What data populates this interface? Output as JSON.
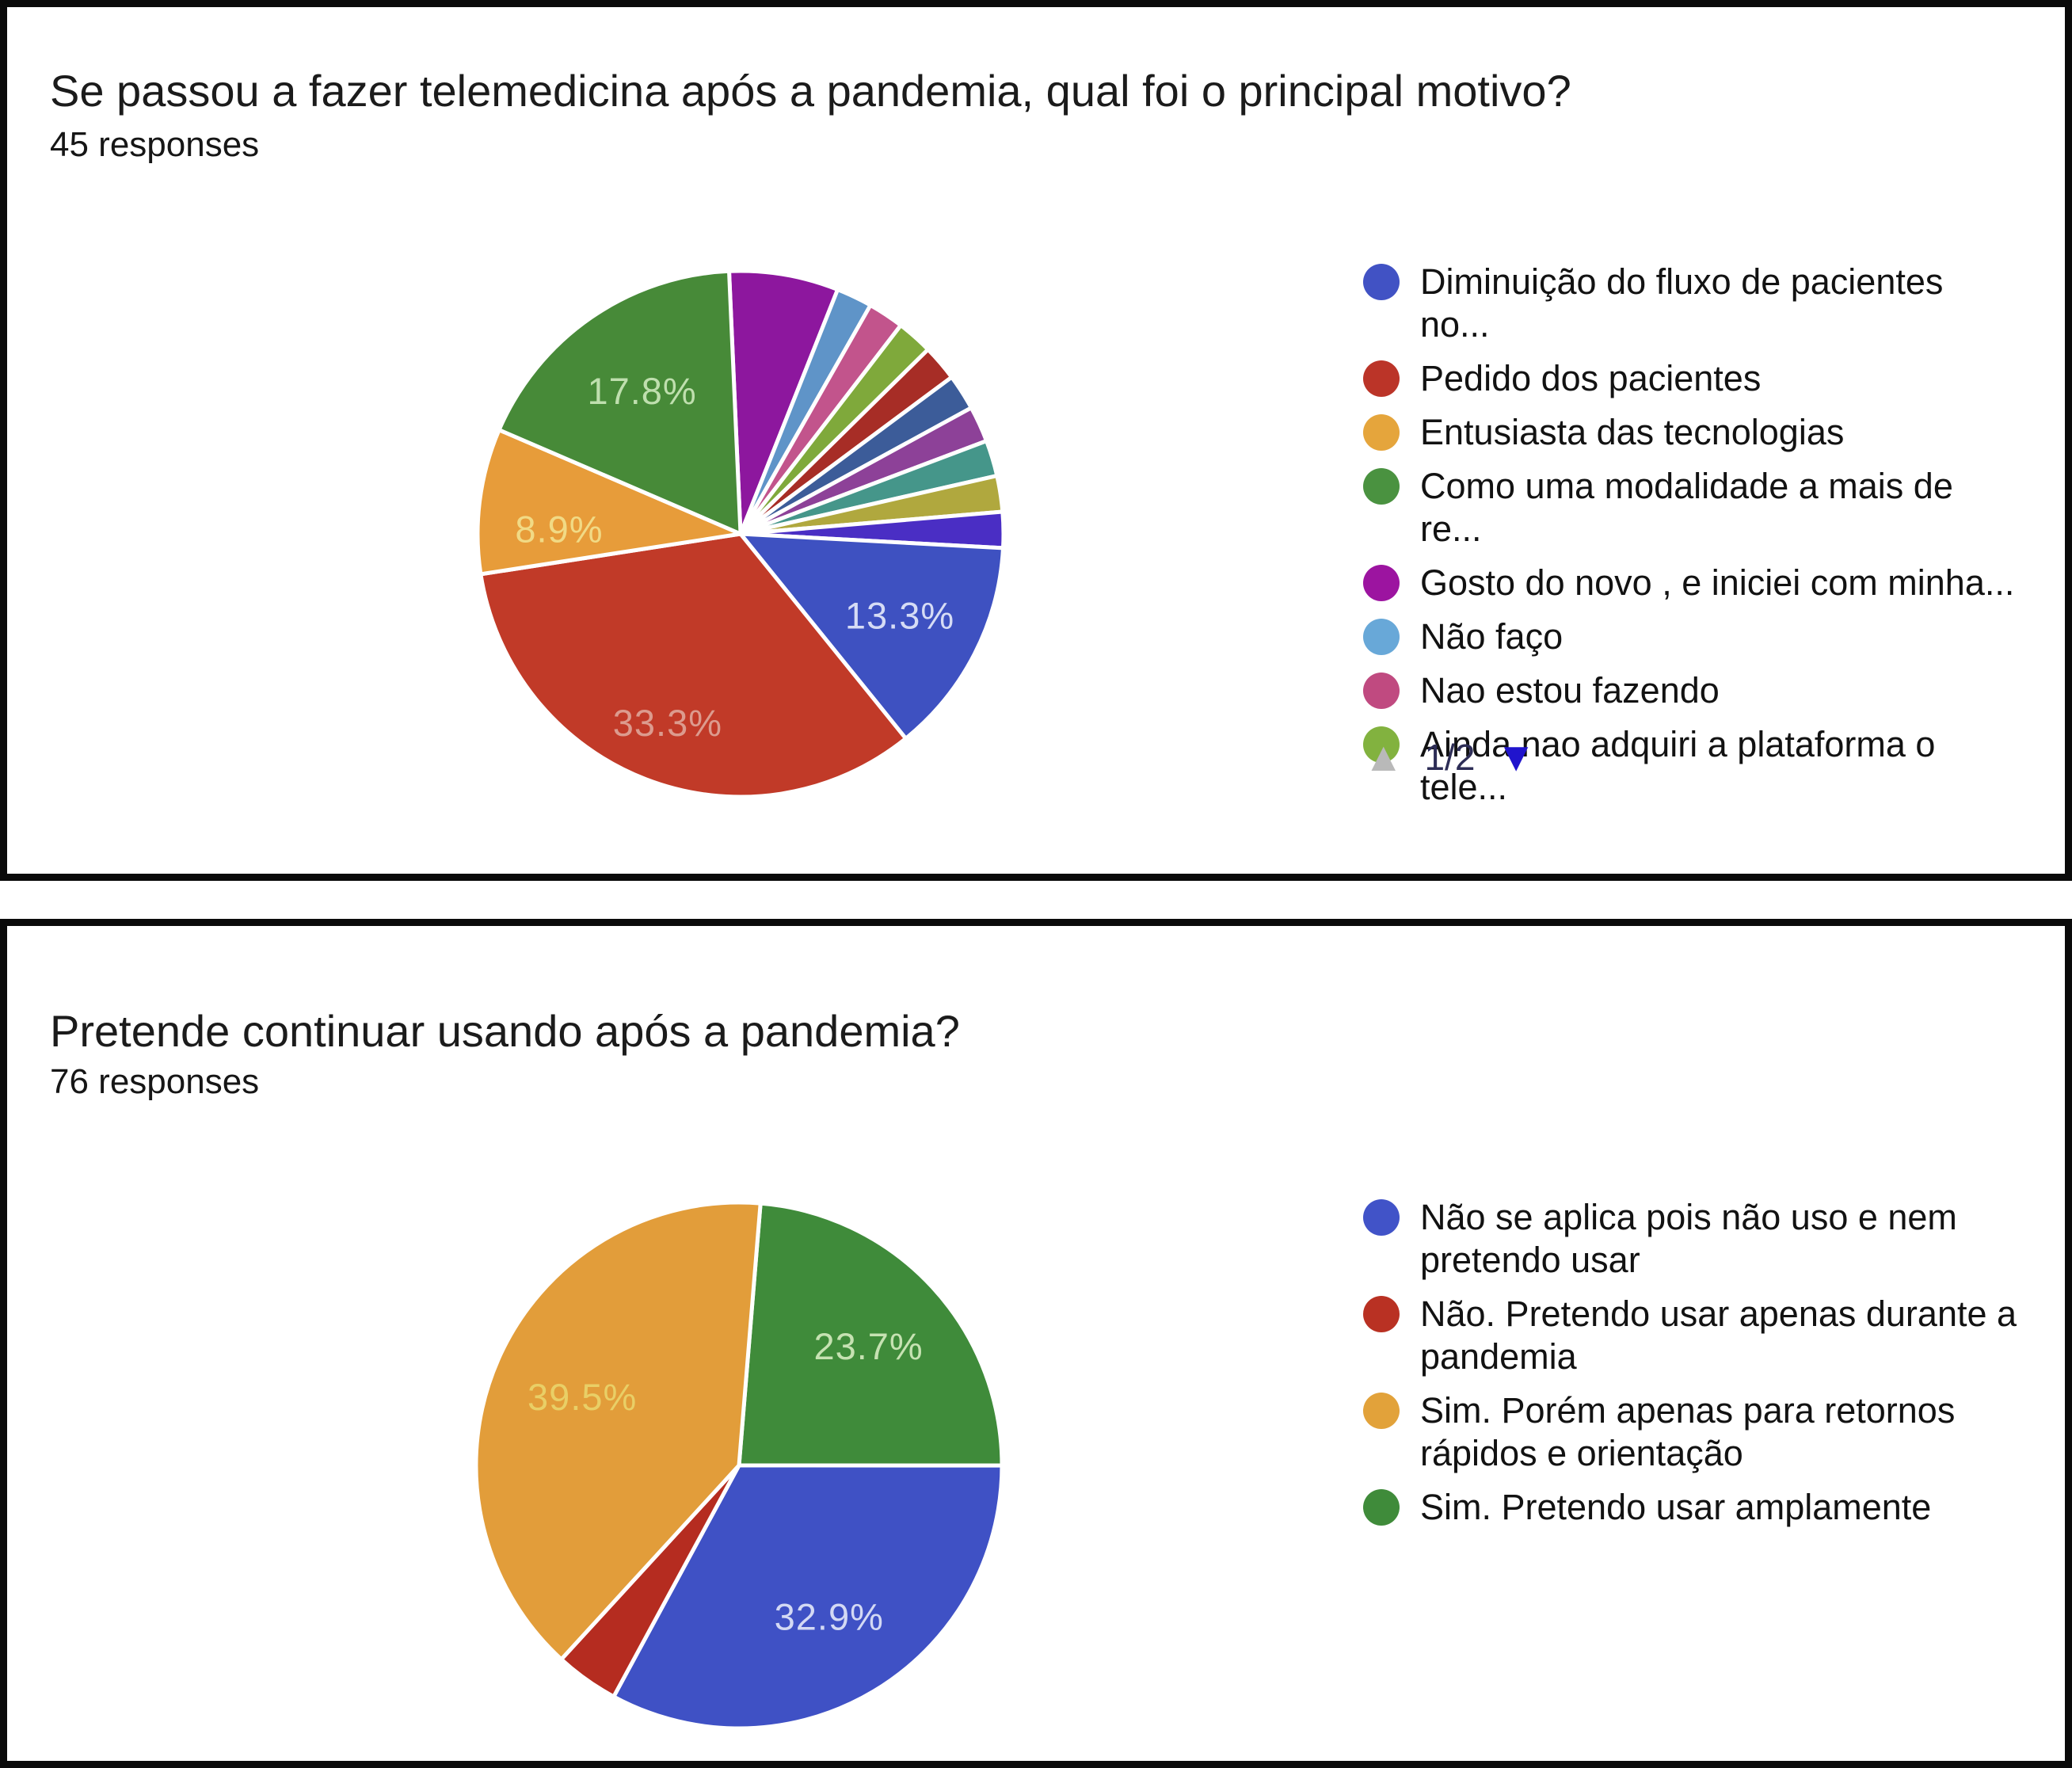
{
  "page": {
    "background": "#ffffff",
    "panel_border_color": "#0a0a0a"
  },
  "panels": [
    {
      "title": "Se passou a fazer telemedicina após a pandemia, qual foi o principal motivo?",
      "responses": "45 responses",
      "legend": [
        {
          "label": "Diminuição do fluxo de pacientes no...",
          "color": "#4152c4"
        },
        {
          "label": "Pedido dos pacientes",
          "color": "#bb3428"
        },
        {
          "label": "Entusiasta das tecnologias",
          "color": "#e5a53c"
        },
        {
          "label": "Como uma modalidade a mais de re...",
          "color": "#4a9240"
        },
        {
          "label": "Gosto do novo , e iniciei com minha...",
          "color": "#9c14a0"
        },
        {
          "label": "Não faço",
          "color": "#68a8d8"
        },
        {
          "label": "Nao estou fazendo",
          "color": "#c04a80"
        },
        {
          "label": "Ainda nao adquiri a plataforma o tele...",
          "color": "#82b23f"
        }
      ],
      "pagination": {
        "up_glyph": "▲",
        "label": "1/2",
        "down_glyph": "▼",
        "up_color": "#b9b9b9",
        "label_color": "#2d2d56",
        "down_color": "#2014cd"
      },
      "chart_data": {
        "type": "pie",
        "title": "Se passou a fazer telemedicina após a pandemia, qual foi o principal motivo?",
        "responses_count": 45,
        "legend_position": "right",
        "legend_page": "1/2",
        "start_angle_deg": -2.5,
        "slices": [
          {
            "value_pct": 6.7,
            "color": "#8d179e",
            "pie_label": ""
          },
          {
            "value_pct": 2.2,
            "color": "#5f94c8",
            "pie_label": ""
          },
          {
            "value_pct": 2.2,
            "color": "#c2548c",
            "pie_label": ""
          },
          {
            "value_pct": 2.2,
            "color": "#7fa93b",
            "pie_label": ""
          },
          {
            "value_pct": 2.2,
            "color": "#a72d26",
            "pie_label": ""
          },
          {
            "value_pct": 2.2,
            "color": "#3c5c99",
            "pie_label": ""
          },
          {
            "value_pct": 2.2,
            "color": "#8d4198",
            "pie_label": ""
          },
          {
            "value_pct": 2.2,
            "color": "#45968a",
            "pie_label": ""
          },
          {
            "value_pct": 2.2,
            "color": "#b0a83e",
            "pie_label": ""
          },
          {
            "value_pct": 2.2,
            "color": "#4a2ec4",
            "pie_label": ""
          },
          {
            "value_pct": 13.3,
            "color": "#3e51c1",
            "pie_label": "13.3%",
            "label_color": "#d6dcf5",
            "label_r": 0.68
          },
          {
            "value_pct": 33.3,
            "color": "#c13a28",
            "pie_label": "33.3%",
            "label_color": "#dc9b8e",
            "label_r": 0.77
          },
          {
            "value_pct": 8.9,
            "color": "#e79c3a",
            "pie_label": "8.9%",
            "label_color": "#f1da85",
            "label_r": 0.69,
            "label_theta_deg": 271.5
          },
          {
            "value_pct": 17.8,
            "color": "#478a38",
            "pie_label": "17.8%",
            "label_color": "#bfdfae",
            "label_r": 0.66
          }
        ]
      }
    },
    {
      "title": "Pretende continuar usando após a pandemia?",
      "responses": "76 responses",
      "legend": [
        {
          "label": "Não se aplica pois não uso e nem\npretendo usar",
          "color": "#4153c8"
        },
        {
          "label": "Não. Pretendo usar apenas durante a\npandemia",
          "color": "#b93123"
        },
        {
          "label": "Sim. Porém apenas para retornos\nrápidos e orientação",
          "color": "#e2a23a"
        },
        {
          "label": "Sim. Pretendo usar amplamente",
          "color": "#3f8b3a"
        }
      ],
      "pagination": null,
      "chart_data": {
        "type": "pie",
        "title": "Pretende continuar usando após a pandemia?",
        "responses_count": 76,
        "legend_position": "right",
        "start_angle_deg": 4.7,
        "slices": [
          {
            "value_pct": 23.7,
            "color": "#3f8b3a",
            "pie_label": "23.7%",
            "label_color": "#c6e2b2",
            "label_r": 0.67
          },
          {
            "value_pct": 32.9,
            "color": "#3f51c5",
            "pie_label": "32.9%",
            "label_color": "#d3d9f4",
            "label_r": 0.67
          },
          {
            "value_pct": 3.9,
            "color": "#b52c20",
            "pie_label": ""
          },
          {
            "value_pct": 39.5,
            "color": "#e29d3a",
            "pie_label": "39.5%",
            "label_color": "#e9cf66",
            "label_r": 0.65
          }
        ]
      }
    }
  ]
}
